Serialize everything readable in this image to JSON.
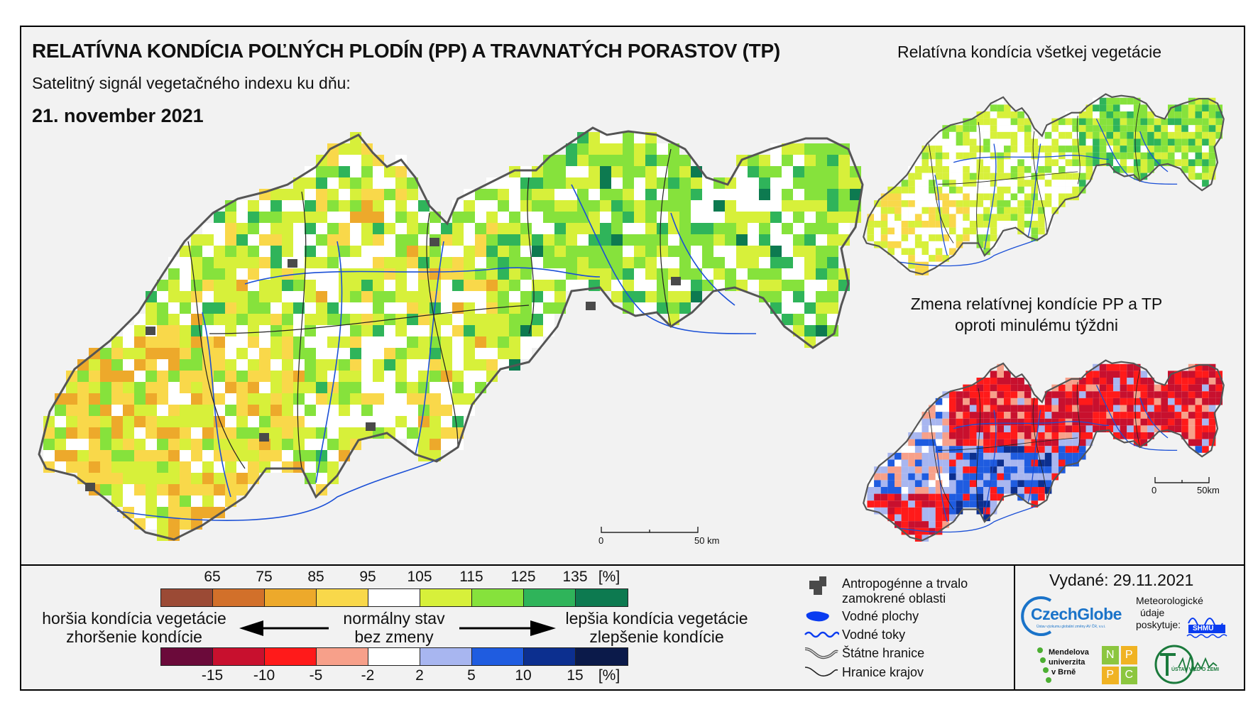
{
  "header": {
    "title": "RELATÍVNA KONDÍCIA POĽNÝCH PLODÍN (PP) A TRAVNATÝCH PORASTOV (TP)",
    "subtitle": "Satelitný signál vegetačného indexu ku dňu:",
    "date": "21. november 2021"
  },
  "insets": {
    "all_vegetation_title": "Relatívna kondícia všetkej vegetácie",
    "change_title_line1": "Zmena relatívnej kondície PP a TP",
    "change_title_line2": "oproti minulému týždni"
  },
  "scalebars": {
    "main": {
      "zero": "0",
      "end": "50 km"
    },
    "change": {
      "zero": "0",
      "end": "50km"
    }
  },
  "legend": {
    "condition_ticks": [
      "65",
      "75",
      "85",
      "95",
      "105",
      "115",
      "125",
      "135",
      "[%]"
    ],
    "condition_colors": [
      "#9b4a35",
      "#d2702a",
      "#eda92b",
      "#f9d84a",
      "#ffffff",
      "#d7f03a",
      "#86e23c",
      "#2fb45a",
      "#0d7a50"
    ],
    "change_ticks": [
      "-15",
      "-10",
      "-5",
      "-2",
      "2",
      "5",
      "10",
      "15",
      "[%]"
    ],
    "change_colors": [
      "#6b0a3a",
      "#c8102e",
      "#ff1a1a",
      "#f7a08a",
      "#ffffff",
      "#a8b6f0",
      "#1f5ce0",
      "#0c2f8f",
      "#0b1a4a"
    ],
    "worse_line1": "horšia kondícia vegetácie",
    "worse_line2": "zhoršenie kondície",
    "normal_line1": "normálny stav",
    "normal_line2": "bez zmeny",
    "better_line1": "lepšia kondícia vegetácie",
    "better_line2": "zlepšenie kondície"
  },
  "map_legend": {
    "anthropogenic_line1": "Antropogénne a trvalo",
    "anthropogenic_line2": "zamokrené oblasti",
    "water_bodies": "Vodné plochy",
    "rivers": "Vodné toky",
    "state_border": "Štátne hranice",
    "region_border": "Hranice krajov"
  },
  "footer": {
    "issued": "Vydané: 29.11.2021",
    "czechglobe": "CzechGlobe",
    "czechglobe_sub": "Ústav výzkumu globální změny AV ČR, v.v.i.",
    "data_by_line1": "Meteorologické",
    "data_by_line2": "údaje",
    "data_by_line3": "poskytuje:",
    "shmu": "SHMÚ",
    "mendel_line1": "Mendelova",
    "mendel_line2": "univerzita",
    "mendel_line3": "v Brně",
    "nppc": [
      "N",
      "P",
      "P",
      "C"
    ],
    "uvz": "ÚSTAV VIED O ZEMI"
  }
}
